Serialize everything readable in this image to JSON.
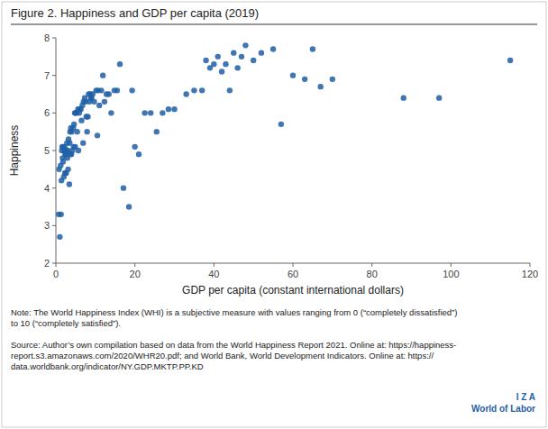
{
  "chart_data": {
    "type": "scatter",
    "title": "Figure 2. Happiness and GDP per capita (2019)",
    "xlabel": "GDP per capita (constant international dollars)",
    "ylabel": "Happiness",
    "xlim": [
      0,
      120
    ],
    "ylim": [
      2,
      8
    ],
    "xticks": [
      0,
      20,
      40,
      60,
      80,
      100,
      120
    ],
    "yticks": [
      2,
      3,
      4,
      5,
      6,
      7,
      8
    ],
    "color": "#1f5fa6",
    "grid": false,
    "annotations": [
      "Note: The World Happiness Index (WHI) is a subjective measure with values ranging from 0 (“completely dissatisfied”)\nto 10 (“completely satisfied”).",
      "Source: Author’s own compilation based on data from the World Happiness Report 2021. Online at: https://happiness-\nreport.s3.amazonaws.com/2020/WHR20.pdf; and World Bank, World Development Indicators. Online at: https://\ndata.worldbank.org/indicator/NY.GDP.MKTP.PP.KD",
      "I  Z  A\nWorld of Labor"
    ],
    "x": [
      0.7,
      0.8,
      1.0,
      1.2,
      1.3,
      1.4,
      1.5,
      1.6,
      1.7,
      1.8,
      1.9,
      2.0,
      2.1,
      2.2,
      2.3,
      2.4,
      2.5,
      2.6,
      2.7,
      2.8,
      2.9,
      3.0,
      3.1,
      3.2,
      3.4,
      3.5,
      3.6,
      3.7,
      3.8,
      3.9,
      4.0,
      4.2,
      4.4,
      4.5,
      4.6,
      4.8,
      4.9,
      5.0,
      5.2,
      5.4,
      5.6,
      5.7,
      5.9,
      6.0,
      6.3,
      6.5,
      6.7,
      6.9,
      7.0,
      7.3,
      7.5,
      7.7,
      7.9,
      8.1,
      8.3,
      8.5,
      8.7,
      8.9,
      9.0,
      9.3,
      9.7,
      10.2,
      10.5,
      10.7,
      11.0,
      11.5,
      11.9,
      12.3,
      12.8,
      13.4,
      14.0,
      14.8,
      15.5,
      16.2,
      17.1,
      18.5,
      19.3,
      20.0,
      21.0,
      22.5,
      24.0,
      25.5,
      27.0,
      28.5,
      30.0,
      33.0,
      35.0,
      37.0,
      38.0,
      39.0,
      40.0,
      41.0,
      42.0,
      43.0,
      44.0,
      45.0,
      46.0,
      47.0,
      48.0,
      50.0,
      52.0,
      55.0,
      57.0,
      60.0,
      63.0,
      65.0,
      67.0,
      70.0,
      88.0,
      97.0,
      115.0
    ],
    "values": [
      3.3,
      4.5,
      2.7,
      4.6,
      3.3,
      4.2,
      5.0,
      5.1,
      4.8,
      4.7,
      5.1,
      4.3,
      5.0,
      5.1,
      4.4,
      4.9,
      4.9,
      4.4,
      5.0,
      5.2,
      4.8,
      5.0,
      4.5,
      5.3,
      4.1,
      5.2,
      5.5,
      4.9,
      5.6,
      4.9,
      5.5,
      5.0,
      5.6,
      5.1,
      5.7,
      6.0,
      5.1,
      6.0,
      6.0,
      5.5,
      6.1,
      5.0,
      6.0,
      6.1,
      6.1,
      5.8,
      6.2,
      5.2,
      6.3,
      6.4,
      6.3,
      5.9,
      5.5,
      5.9,
      6.5,
      6.3,
      6.5,
      6.4,
      6.4,
      6.5,
      6.3,
      6.6,
      5.4,
      6.6,
      6.2,
      6.6,
      7.0,
      6.3,
      6.5,
      6.5,
      6.0,
      6.6,
      6.6,
      7.3,
      4.0,
      3.5,
      6.6,
      5.1,
      4.9,
      6.0,
      6.0,
      5.5,
      6.0,
      6.1,
      6.1,
      6.5,
      6.6,
      6.6,
      7.4,
      7.2,
      7.3,
      7.5,
      7.1,
      7.3,
      6.6,
      7.6,
      7.2,
      7.5,
      7.8,
      7.4,
      7.6,
      7.7,
      5.7,
      7.0,
      6.9,
      7.7,
      6.7,
      6.9,
      6.4,
      6.4,
      7.4
    ]
  }
}
